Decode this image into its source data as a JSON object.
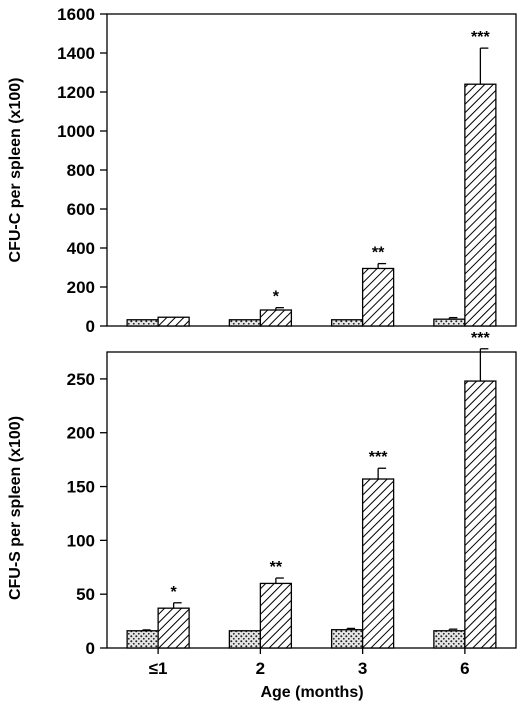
{
  "chart_data": [
    {
      "type": "bar",
      "categories": [
        "≤1",
        "2",
        "3",
        "6"
      ],
      "series": [
        {
          "pattern": "dotted",
          "values": [
            32,
            32,
            32,
            35
          ],
          "errors": [
            0,
            0,
            0,
            8
          ]
        },
        {
          "pattern": "hatched",
          "values": [
            45,
            82,
            295,
            1240
          ],
          "errors": [
            0,
            12,
            25,
            185
          ]
        }
      ],
      "significance": [
        "",
        "*",
        "**",
        "***"
      ],
      "ylabel": "CFU-C per spleen (x100)",
      "ylim": [
        0,
        1600
      ],
      "yticks": [
        0,
        200,
        400,
        600,
        800,
        1000,
        1200,
        1400,
        1600
      ],
      "xlabel": "",
      "grid": false
    },
    {
      "type": "bar",
      "categories": [
        "≤1",
        "2",
        "3",
        "6"
      ],
      "series": [
        {
          "pattern": "dotted",
          "values": [
            16,
            16,
            17,
            16
          ],
          "errors": [
            0.8,
            0,
            1.2,
            1.5
          ]
        },
        {
          "pattern": "hatched",
          "values": [
            37,
            60,
            157,
            248
          ],
          "errors": [
            5,
            5,
            10,
            30
          ]
        }
      ],
      "significance": [
        "*",
        "**",
        "***",
        "***"
      ],
      "ylabel": "CFU-S per spleen (x100)",
      "ylim": [
        0,
        275
      ],
      "yticks": [
        0,
        50,
        100,
        150,
        200,
        250
      ],
      "xlabel": "Age (months)",
      "grid": false
    }
  ]
}
